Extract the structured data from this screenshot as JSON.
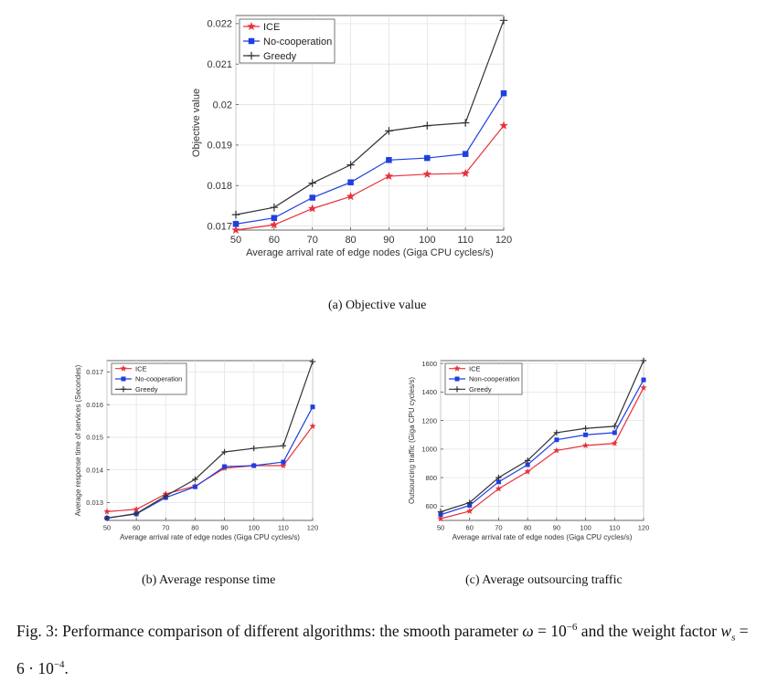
{
  "charts": [
    {
      "id": "a",
      "type": "line",
      "xlabel": "Average arrival rate of edge nodes (Giga CPU cycles/s)",
      "ylabel": "Objective value",
      "x": [
        50,
        60,
        70,
        80,
        90,
        100,
        110,
        120
      ],
      "xlim": [
        50,
        120
      ],
      "ylim": [
        0.0169,
        0.0222
      ],
      "yticks": [
        0.017,
        0.018,
        0.019,
        0.02,
        0.021,
        0.022
      ],
      "ytick_labels": [
        "0.017",
        "0.018",
        "0.019",
        "0.02",
        "0.021",
        "0.022"
      ],
      "series": [
        {
          "name": "ICE",
          "color": "#e8303a",
          "marker": "star",
          "values": [
            0.0169,
            0.01703,
            0.01743,
            0.01773,
            0.01823,
            0.01828,
            0.0183,
            0.01948
          ]
        },
        {
          "name": "No-cooperation",
          "color": "#1f3fe0",
          "marker": "square",
          "values": [
            0.01705,
            0.0172,
            0.0177,
            0.01808,
            0.01863,
            0.01868,
            0.01878,
            0.02028
          ]
        },
        {
          "name": "Greedy",
          "color": "#333333",
          "marker": "plus",
          "values": [
            0.01728,
            0.01746,
            0.01806,
            0.01851,
            0.01935,
            0.01948,
            0.01955,
            0.02208
          ]
        }
      ]
    },
    {
      "id": "b",
      "type": "line",
      "xlabel": "Average arrival rate of edge nodes (Giga CPU cycles/s)",
      "ylabel": "Average response time of services (Secondes)",
      "x": [
        50,
        60,
        70,
        80,
        90,
        100,
        110,
        120
      ],
      "xlim": [
        50,
        120
      ],
      "ylim": [
        0.01245,
        0.01735
      ],
      "yticks": [
        0.013,
        0.014,
        0.015,
        0.016,
        0.017
      ],
      "ytick_labels": [
        "0.013",
        "0.014",
        "0.015",
        "0.016",
        "0.017"
      ],
      "series": [
        {
          "name": "ICE",
          "color": "#e8303a",
          "marker": "star",
          "values": [
            0.01272,
            0.01279,
            0.01326,
            0.0135,
            0.01405,
            0.01413,
            0.01413,
            0.01534
          ]
        },
        {
          "name": "No-cooperation",
          "color": "#1f3fe0",
          "marker": "square",
          "values": [
            0.01252,
            0.01265,
            0.01315,
            0.01348,
            0.0141,
            0.01413,
            0.01424,
            0.01593
          ]
        },
        {
          "name": "Greedy",
          "color": "#333333",
          "marker": "plus",
          "values": [
            0.01252,
            0.01266,
            0.0132,
            0.01371,
            0.01455,
            0.01466,
            0.01474,
            0.01732
          ]
        }
      ]
    },
    {
      "id": "c",
      "type": "line",
      "xlabel": "Average arrival rate of edge nodes (Giga CPU cycles/s)",
      "ylabel": "Outsourcing traffic (Giga CPU cycles/s)",
      "x": [
        50,
        60,
        70,
        80,
        90,
        100,
        110,
        120
      ],
      "xlim": [
        50,
        120
      ],
      "ylim": [
        500,
        1620
      ],
      "yticks": [
        600,
        800,
        1000,
        1200,
        1400,
        1600
      ],
      "ytick_labels": [
        "600",
        "800",
        "1000",
        "1200",
        "1400",
        "1600"
      ],
      "series": [
        {
          "name": "ICE",
          "color": "#e8303a",
          "marker": "star",
          "values": [
            512,
            565,
            722,
            842,
            990,
            1025,
            1040,
            1430
          ]
        },
        {
          "name": "Non-cooperation",
          "color": "#1f3fe0",
          "marker": "square",
          "values": [
            540,
            605,
            770,
            890,
            1065,
            1100,
            1115,
            1485
          ]
        },
        {
          "name": "Greedy",
          "color": "#333333",
          "marker": "plus",
          "values": [
            560,
            625,
            800,
            920,
            1115,
            1145,
            1160,
            1620
          ]
        }
      ]
    }
  ],
  "captions": {
    "a": "(a) Objective value",
    "b": "(b) Average response time",
    "c": "(c) Average outsourcing traffic"
  },
  "figure_caption": {
    "label": "Fig. 3:",
    "text": "Performance comparison of different algorithms: the smooth parameter",
    "omega": "ω",
    "eq1": "= 10",
    "exp1": "−6",
    "and": "and the weight factor",
    "w": "w",
    "w_sub": "s",
    "eq2": "= 6 · 10",
    "exp2": "−4",
    "end": "."
  }
}
